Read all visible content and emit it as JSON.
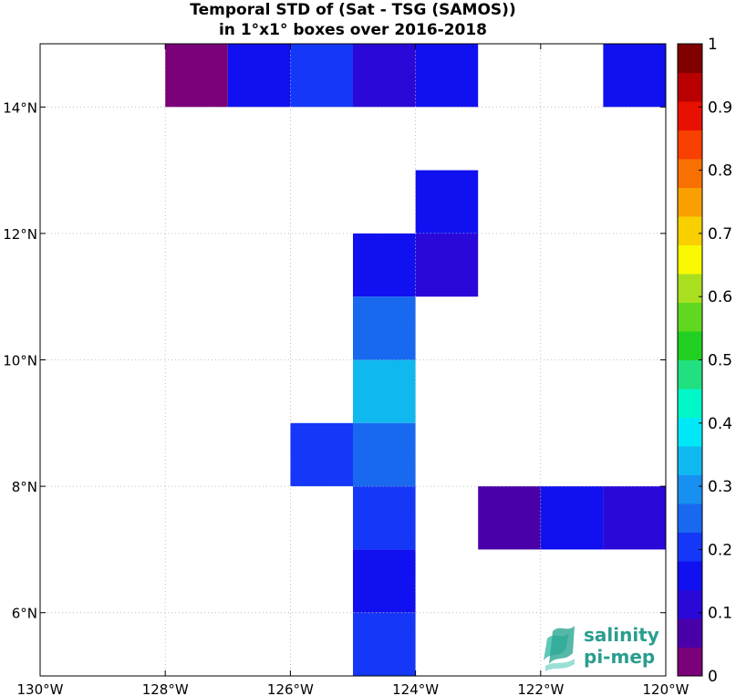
{
  "chart_data": {
    "type": "heatmap",
    "title_lines": [
      "Temporal STD of (Sat - TSG (SAMOS))",
      "in 1°x1° boxes over 2016-2018"
    ],
    "xlim": [
      -130,
      -120
    ],
    "ylim": [
      5,
      15
    ],
    "x_ticks": [
      {
        "value": -130,
        "label": "130°W"
      },
      {
        "value": -128,
        "label": "128°W"
      },
      {
        "value": -126,
        "label": "126°W"
      },
      {
        "value": -124,
        "label": "124°W"
      },
      {
        "value": -122,
        "label": "122°W"
      },
      {
        "value": -120,
        "label": "120°W"
      }
    ],
    "y_ticks": [
      {
        "value": 6,
        "label": "6°N"
      },
      {
        "value": 8,
        "label": "8°N"
      },
      {
        "value": 10,
        "label": "10°N"
      },
      {
        "value": 12,
        "label": "12°N"
      },
      {
        "value": 14,
        "label": "14°N"
      }
    ],
    "grid": true,
    "colorbar": {
      "range": [
        0,
        1
      ],
      "ticks": [
        "0",
        "0.1",
        "0.2",
        "0.3",
        "0.4",
        "0.5",
        "0.6",
        "0.7",
        "0.8",
        "0.9",
        "1"
      ],
      "colors": [
        "#7a007a",
        "#4a00a8",
        "#2a08d8",
        "#1010f0",
        "#1538f8",
        "#1868f0",
        "#1890f0",
        "#10b8f0",
        "#00e8f8",
        "#00f8c8",
        "#20e080",
        "#20d020",
        "#60d820",
        "#a8e020",
        "#f8f800",
        "#f8d000",
        "#f8a000",
        "#f87000",
        "#f84000",
        "#e81000",
        "#b80000",
        "#800000"
      ],
      "position": "right"
    },
    "cells": [
      {
        "lon": -128,
        "lat": 14,
        "value": 0.04
      },
      {
        "lon": -127,
        "lat": 14,
        "value": 0.18
      },
      {
        "lon": -126,
        "lat": 14,
        "value": 0.22
      },
      {
        "lon": -125,
        "lat": 14,
        "value": 0.12
      },
      {
        "lon": -124,
        "lat": 14,
        "value": 0.18
      },
      {
        "lon": -121,
        "lat": 14,
        "value": 0.18
      },
      {
        "lon": -124,
        "lat": 12,
        "value": 0.18
      },
      {
        "lon": -125,
        "lat": 11,
        "value": 0.18
      },
      {
        "lon": -124,
        "lat": 11,
        "value": 0.12
      },
      {
        "lon": -125,
        "lat": 10,
        "value": 0.27
      },
      {
        "lon": -125,
        "lat": 9,
        "value": 0.32
      },
      {
        "lon": -126,
        "lat": 8,
        "value": 0.21
      },
      {
        "lon": -125,
        "lat": 8,
        "value": 0.27
      },
      {
        "lon": -125,
        "lat": 7,
        "value": 0.21
      },
      {
        "lon": -123,
        "lat": 7,
        "value": 0.09
      },
      {
        "lon": -122,
        "lat": 7,
        "value": 0.18
      },
      {
        "lon": -121,
        "lat": 7,
        "value": 0.13
      },
      {
        "lon": -125,
        "lat": 6,
        "value": 0.18
      },
      {
        "lon": -125,
        "lat": 5,
        "value": 0.21
      }
    ]
  },
  "logo": {
    "line1": "salinity",
    "line2": "pi-mep"
  }
}
